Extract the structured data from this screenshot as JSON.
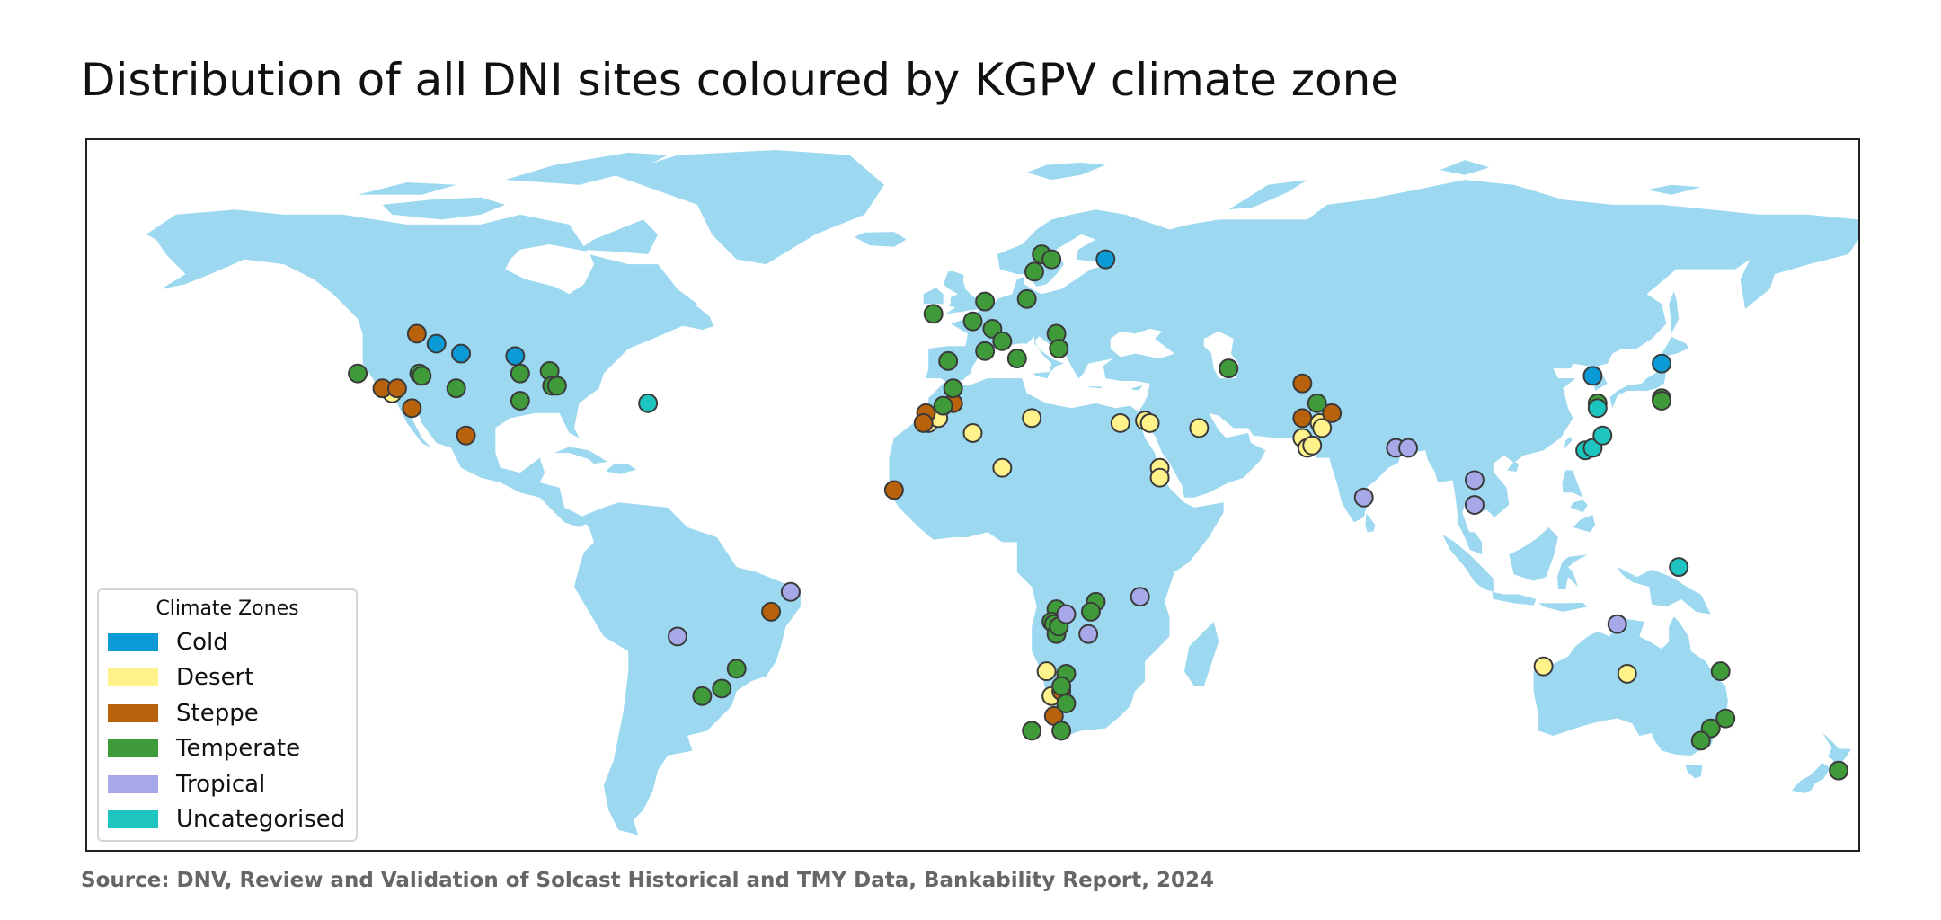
{
  "header": {
    "title": "Distribution of all DNI sites coloured by KGPV climate zone"
  },
  "legend": {
    "title": "Climate Zones",
    "items": [
      {
        "label": "Cold",
        "color": "#0a9ad6"
      },
      {
        "label": "Desert",
        "color": "#fff28a"
      },
      {
        "label": "Steppe",
        "color": "#b8620b"
      },
      {
        "label": "Temperate",
        "color": "#3f9a3a"
      },
      {
        "label": "Tropical",
        "color": "#a6a8e8"
      },
      {
        "label": "Uncategorised",
        "color": "#1ec4bf"
      }
    ]
  },
  "footer": {
    "source": "Source: DNV, Review and Validation of Solcast Historical and TMY Data, Bankability Report, 2024"
  },
  "map": {
    "land_color": "#9dd8f1",
    "sea_color": "#ffffff",
    "marker_edge_color": "#3a3a3a",
    "sites": [
      {
        "lon": -109,
        "lat": 44,
        "zone": "Cold"
      },
      {
        "lon": -104,
        "lat": 42,
        "zone": "Cold"
      },
      {
        "lon": -93,
        "lat": 41.5,
        "zone": "Cold"
      },
      {
        "lon": 27,
        "lat": 61,
        "zone": "Cold"
      },
      {
        "lon": 126,
        "lat": 37.5,
        "zone": "Cold"
      },
      {
        "lon": 140,
        "lat": 40,
        "zone": "Cold"
      },
      {
        "lon": -118,
        "lat": 34,
        "zone": "Desert"
      },
      {
        "lon": -9,
        "lat": 28,
        "zone": "Desert"
      },
      {
        "lon": -7,
        "lat": 29,
        "zone": "Desert"
      },
      {
        "lon": 0,
        "lat": 26,
        "zone": "Desert"
      },
      {
        "lon": 6,
        "lat": 19,
        "zone": "Desert"
      },
      {
        "lon": 12,
        "lat": 29,
        "zone": "Desert"
      },
      {
        "lon": 30,
        "lat": 28,
        "zone": "Desert"
      },
      {
        "lon": 35,
        "lat": 28.5,
        "zone": "Desert"
      },
      {
        "lon": 36,
        "lat": 28,
        "zone": "Desert"
      },
      {
        "lon": 46,
        "lat": 27,
        "zone": "Desert"
      },
      {
        "lon": 38,
        "lat": 19,
        "zone": "Desert"
      },
      {
        "lon": 38,
        "lat": 17,
        "zone": "Desert"
      },
      {
        "lon": 67,
        "lat": 25,
        "zone": "Desert"
      },
      {
        "lon": 68,
        "lat": 23,
        "zone": "Desert"
      },
      {
        "lon": 69,
        "lat": 23.5,
        "zone": "Desert"
      },
      {
        "lon": 70.5,
        "lat": 28,
        "zone": "Desert"
      },
      {
        "lon": 71,
        "lat": 27,
        "zone": "Desert"
      },
      {
        "lon": 15,
        "lat": -22,
        "zone": "Desert"
      },
      {
        "lon": 16,
        "lat": -27,
        "zone": "Desert"
      },
      {
        "lon": 116,
        "lat": -21,
        "zone": "Desert"
      },
      {
        "lon": 133,
        "lat": -22.5,
        "zone": "Desert"
      },
      {
        "lon": -120,
        "lat": 35,
        "zone": "Steppe"
      },
      {
        "lon": -117,
        "lat": 35,
        "zone": "Steppe"
      },
      {
        "lon": -113,
        "lat": 46,
        "zone": "Steppe"
      },
      {
        "lon": -114,
        "lat": 31,
        "zone": "Steppe"
      },
      {
        "lon": -103,
        "lat": 25.5,
        "zone": "Steppe"
      },
      {
        "lon": -9.5,
        "lat": 30,
        "zone": "Steppe"
      },
      {
        "lon": -10,
        "lat": 28,
        "zone": "Steppe"
      },
      {
        "lon": -4,
        "lat": 32,
        "zone": "Steppe"
      },
      {
        "lon": -16,
        "lat": 14.5,
        "zone": "Steppe"
      },
      {
        "lon": 67,
        "lat": 36,
        "zone": "Steppe"
      },
      {
        "lon": 67,
        "lat": 29,
        "zone": "Steppe"
      },
      {
        "lon": 73,
        "lat": 30,
        "zone": "Steppe"
      },
      {
        "lon": -41,
        "lat": -10,
        "zone": "Steppe"
      },
      {
        "lon": 18,
        "lat": -26,
        "zone": "Steppe"
      },
      {
        "lon": 16.5,
        "lat": -31,
        "zone": "Steppe"
      },
      {
        "lon": -125,
        "lat": 38,
        "zone": "Temperate"
      },
      {
        "lon": -112.5,
        "lat": 38,
        "zone": "Temperate"
      },
      {
        "lon": -112,
        "lat": 37.5,
        "zone": "Temperate"
      },
      {
        "lon": -105,
        "lat": 35,
        "zone": "Temperate"
      },
      {
        "lon": -92,
        "lat": 32.5,
        "zone": "Temperate"
      },
      {
        "lon": -92,
        "lat": 38,
        "zone": "Temperate"
      },
      {
        "lon": -86,
        "lat": 38.5,
        "zone": "Temperate"
      },
      {
        "lon": -85.5,
        "lat": 35.5,
        "zone": "Temperate"
      },
      {
        "lon": -84.5,
        "lat": 35.5,
        "zone": "Temperate"
      },
      {
        "lon": -8,
        "lat": 50,
        "zone": "Temperate"
      },
      {
        "lon": -5,
        "lat": 40.5,
        "zone": "Temperate"
      },
      {
        "lon": -4,
        "lat": 35,
        "zone": "Temperate"
      },
      {
        "lon": -6,
        "lat": 31.5,
        "zone": "Temperate"
      },
      {
        "lon": 0,
        "lat": 48.5,
        "zone": "Temperate"
      },
      {
        "lon": 2.5,
        "lat": 52.5,
        "zone": "Temperate"
      },
      {
        "lon": 4,
        "lat": 47,
        "zone": "Temperate"
      },
      {
        "lon": 2.5,
        "lat": 42.5,
        "zone": "Temperate"
      },
      {
        "lon": 6,
        "lat": 44.5,
        "zone": "Temperate"
      },
      {
        "lon": 9,
        "lat": 41,
        "zone": "Temperate"
      },
      {
        "lon": 11,
        "lat": 53,
        "zone": "Temperate"
      },
      {
        "lon": 12.5,
        "lat": 58.5,
        "zone": "Temperate"
      },
      {
        "lon": 14,
        "lat": 62,
        "zone": "Temperate"
      },
      {
        "lon": 16,
        "lat": 61,
        "zone": "Temperate"
      },
      {
        "lon": 17,
        "lat": 46,
        "zone": "Temperate"
      },
      {
        "lon": 17.5,
        "lat": 43,
        "zone": "Temperate"
      },
      {
        "lon": 52,
        "lat": 39,
        "zone": "Temperate"
      },
      {
        "lon": 70,
        "lat": 32,
        "zone": "Temperate"
      },
      {
        "lon": 127,
        "lat": 32,
        "zone": "Temperate"
      },
      {
        "lon": 140,
        "lat": 33,
        "zone": "Temperate"
      },
      {
        "lon": 140,
        "lat": 32.5,
        "zone": "Temperate"
      },
      {
        "lon": 17,
        "lat": -9.5,
        "zone": "Temperate"
      },
      {
        "lon": 16,
        "lat": -12,
        "zone": "Temperate"
      },
      {
        "lon": 16.5,
        "lat": -12.5,
        "zone": "Temperate"
      },
      {
        "lon": 17,
        "lat": -14.5,
        "zone": "Temperate"
      },
      {
        "lon": 17.5,
        "lat": -13,
        "zone": "Temperate"
      },
      {
        "lon": 25,
        "lat": -8,
        "zone": "Temperate"
      },
      {
        "lon": 24,
        "lat": -10,
        "zone": "Temperate"
      },
      {
        "lon": 19,
        "lat": -22.5,
        "zone": "Temperate"
      },
      {
        "lon": 18,
        "lat": -25,
        "zone": "Temperate"
      },
      {
        "lon": 19,
        "lat": -28.5,
        "zone": "Temperate"
      },
      {
        "lon": 12,
        "lat": -34,
        "zone": "Temperate"
      },
      {
        "lon": 18,
        "lat": -34,
        "zone": "Temperate"
      },
      {
        "lon": -48,
        "lat": -21.5,
        "zone": "Temperate"
      },
      {
        "lon": -51,
        "lat": -25.5,
        "zone": "Temperate"
      },
      {
        "lon": -55,
        "lat": -27,
        "zone": "Temperate"
      },
      {
        "lon": 152,
        "lat": -22,
        "zone": "Temperate"
      },
      {
        "lon": 153,
        "lat": -31.5,
        "zone": "Temperate"
      },
      {
        "lon": 150,
        "lat": -33.5,
        "zone": "Temperate"
      },
      {
        "lon": 148,
        "lat": -36,
        "zone": "Temperate"
      },
      {
        "lon": 176,
        "lat": -42,
        "zone": "Temperate"
      },
      {
        "lon": 86,
        "lat": 23,
        "zone": "Tropical"
      },
      {
        "lon": 88.5,
        "lat": 23,
        "zone": "Tropical"
      },
      {
        "lon": 79.5,
        "lat": 13,
        "zone": "Tropical"
      },
      {
        "lon": 102,
        "lat": 16.5,
        "zone": "Tropical"
      },
      {
        "lon": 102,
        "lat": 11.5,
        "zone": "Tropical"
      },
      {
        "lon": -37,
        "lat": -6,
        "zone": "Tropical"
      },
      {
        "lon": -60,
        "lat": -15,
        "zone": "Tropical"
      },
      {
        "lon": 34,
        "lat": -7,
        "zone": "Tropical"
      },
      {
        "lon": 19,
        "lat": -10.5,
        "zone": "Tropical"
      },
      {
        "lon": 23.5,
        "lat": -14.5,
        "zone": "Tropical"
      },
      {
        "lon": 131,
        "lat": -12.5,
        "zone": "Tropical"
      },
      {
        "lon": -66,
        "lat": 32,
        "zone": "Uncategorised"
      },
      {
        "lon": 127,
        "lat": 31,
        "zone": "Uncategorised"
      },
      {
        "lon": 124.5,
        "lat": 22.5,
        "zone": "Uncategorised"
      },
      {
        "lon": 126,
        "lat": 23,
        "zone": "Uncategorised"
      },
      {
        "lon": 128,
        "lat": 25.5,
        "zone": "Uncategorised"
      },
      {
        "lon": 143.5,
        "lat": -1,
        "zone": "Uncategorised"
      }
    ]
  }
}
